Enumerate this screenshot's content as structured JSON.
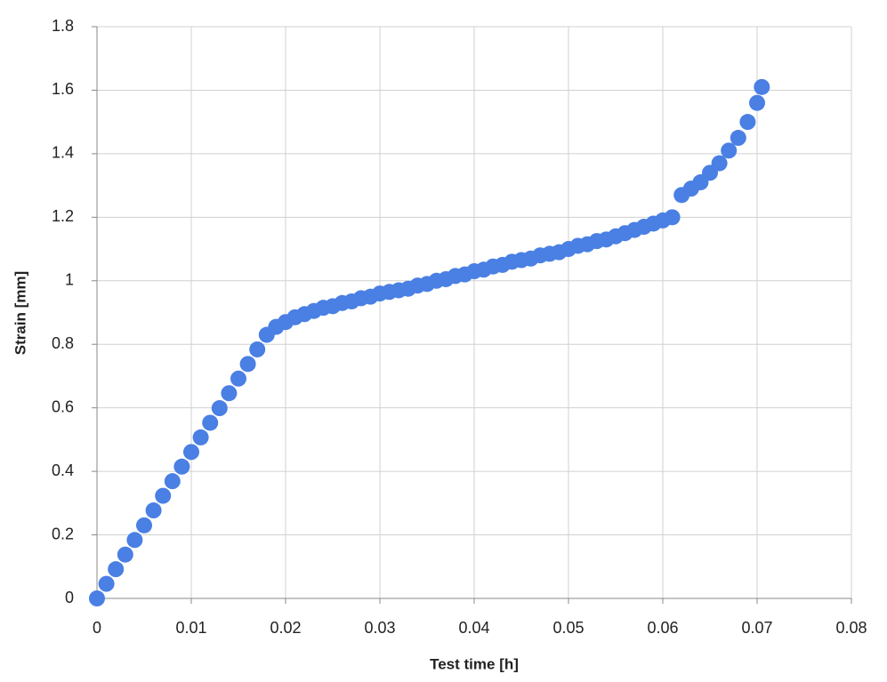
{
  "chart_data": {
    "type": "scatter",
    "xlabel": "Test time [h]",
    "ylabel": "Strain [mm]",
    "x": [
      0,
      0.001,
      0.002,
      0.003,
      0.004,
      0.005,
      0.006,
      0.007,
      0.008,
      0.009,
      0.01,
      0.011,
      0.012,
      0.013,
      0.014,
      0.015,
      0.016,
      0.017,
      0.018,
      0.019,
      0.02,
      0.021,
      0.022,
      0.023,
      0.024,
      0.025,
      0.026,
      0.027,
      0.028,
      0.029,
      0.03,
      0.031,
      0.032,
      0.033,
      0.034,
      0.035,
      0.036,
      0.037,
      0.038,
      0.039,
      0.04,
      0.041,
      0.042,
      0.043,
      0.044,
      0.045,
      0.046,
      0.047,
      0.048,
      0.049,
      0.05,
      0.051,
      0.052,
      0.053,
      0.054,
      0.055,
      0.056,
      0.057,
      0.058,
      0.059,
      0.06,
      0.061,
      0.062,
      0.063,
      0.064,
      0.065,
      0.066,
      0.067,
      0.068,
      0.069,
      0.07,
      0.0705
    ],
    "values": [
      0,
      0.046,
      0.092,
      0.138,
      0.184,
      0.23,
      0.277,
      0.323,
      0.369,
      0.415,
      0.461,
      0.507,
      0.553,
      0.599,
      0.646,
      0.692,
      0.738,
      0.784,
      0.83,
      0.855,
      0.87,
      0.885,
      0.895,
      0.905,
      0.915,
      0.92,
      0.93,
      0.935,
      0.945,
      0.95,
      0.96,
      0.965,
      0.97,
      0.975,
      0.985,
      0.99,
      1.0,
      1.005,
      1.015,
      1.02,
      1.03,
      1.035,
      1.045,
      1.05,
      1.06,
      1.065,
      1.07,
      1.08,
      1.085,
      1.09,
      1.1,
      1.11,
      1.115,
      1.125,
      1.13,
      1.14,
      1.15,
      1.16,
      1.17,
      1.18,
      1.19,
      1.2,
      1.27,
      1.29,
      1.31,
      1.34,
      1.37,
      1.41,
      1.45,
      1.5,
      1.56,
      1.61
    ],
    "color": "#4a7fe4",
    "xlim": [
      0,
      0.08
    ],
    "xticks": [
      0,
      0.01,
      0.02,
      0.03,
      0.04,
      0.05,
      0.06,
      0.07,
      0.08
    ],
    "ylim": [
      0,
      1.8
    ],
    "yticks": [
      0,
      0.2,
      0.4,
      0.6,
      0.8,
      1,
      1.2,
      1.4,
      1.6,
      1.8
    ],
    "grid": true
  }
}
